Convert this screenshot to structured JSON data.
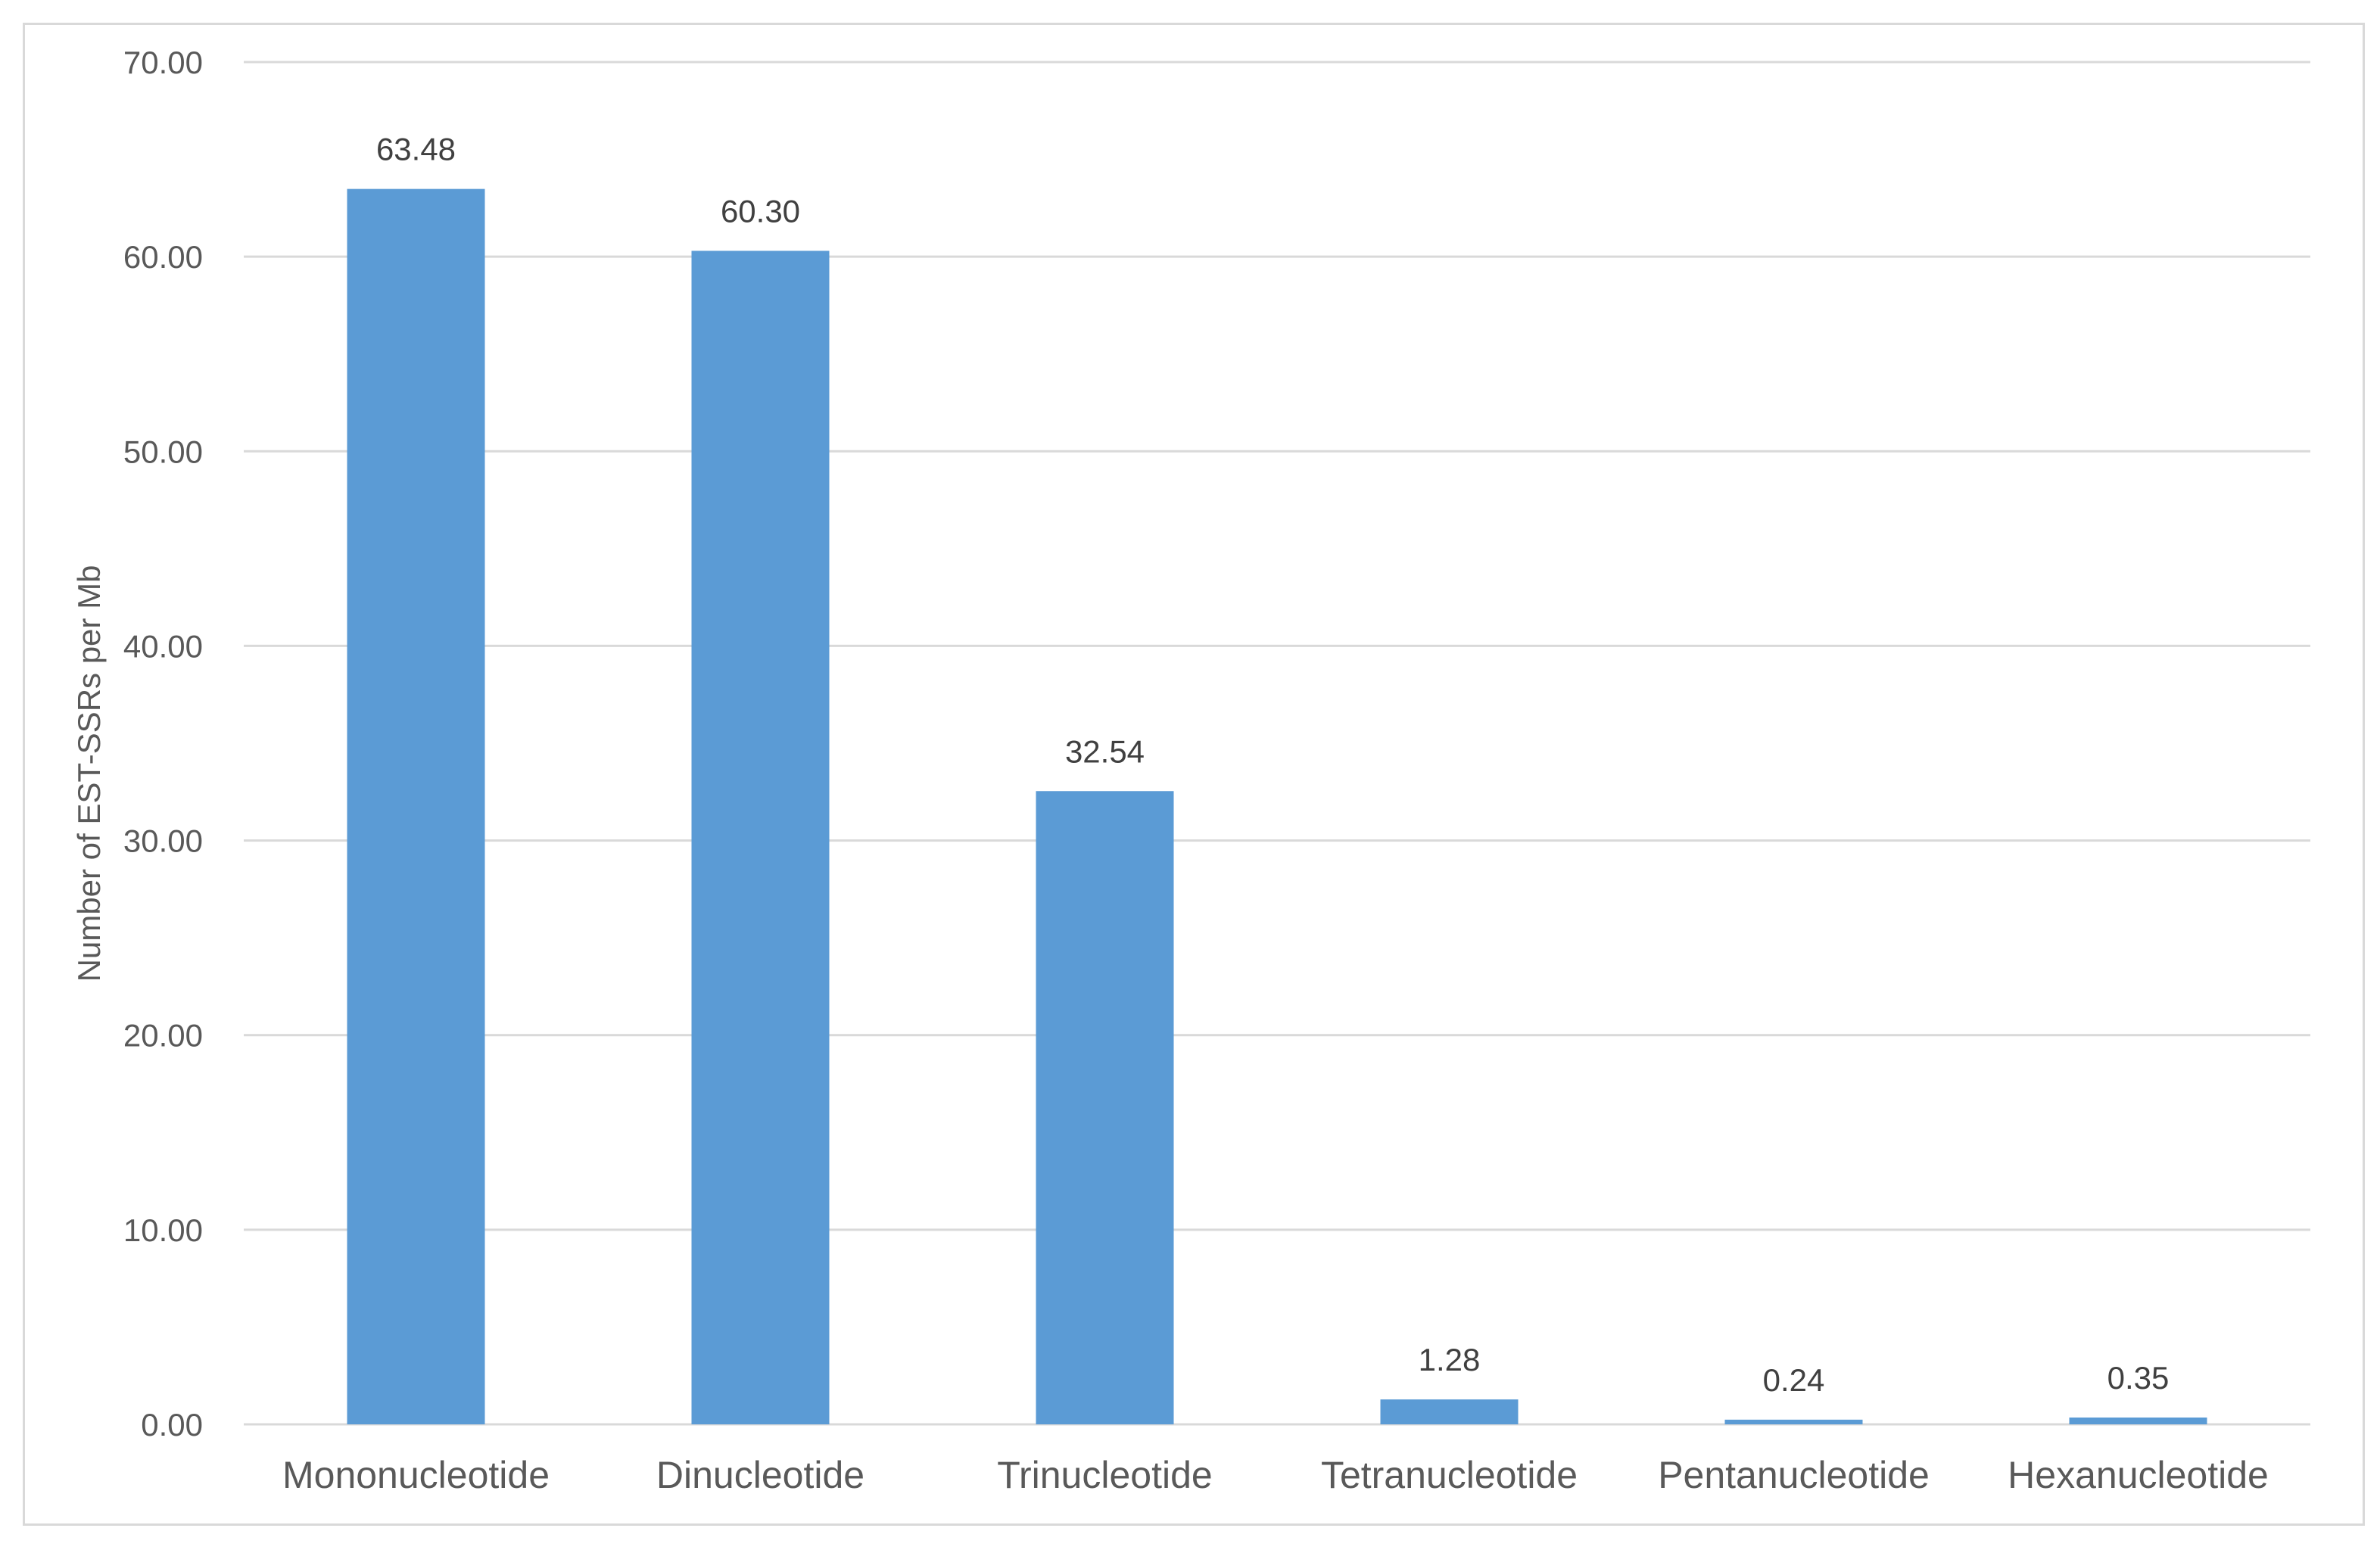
{
  "chart_data": {
    "type": "bar",
    "title": "",
    "xlabel": "",
    "ylabel": "Number of EST-SSRs per Mb",
    "categories": [
      "Mononucleotide",
      "Dinucleotide",
      "Trinucleotide",
      "Tetranucleotide",
      "Pentanucleotide",
      "Hexanucleotide"
    ],
    "values": [
      63.48,
      60.3,
      32.54,
      1.28,
      0.24,
      0.35
    ],
    "data_labels": [
      "63.48",
      "60.30",
      "32.54",
      "1.28",
      "0.24",
      "0.35"
    ],
    "ylim": [
      0,
      70
    ],
    "yticks": [
      "0.00",
      "10.00",
      "20.00",
      "30.00",
      "40.00",
      "50.00",
      "60.00",
      "70.00"
    ],
    "grid": true,
    "legend": "none",
    "colors": {
      "bar": "#5b9bd5",
      "grid": "#d9d9d9",
      "axis_text": "#595959",
      "label_text": "#404040",
      "frame": "#d9d9d9"
    }
  }
}
